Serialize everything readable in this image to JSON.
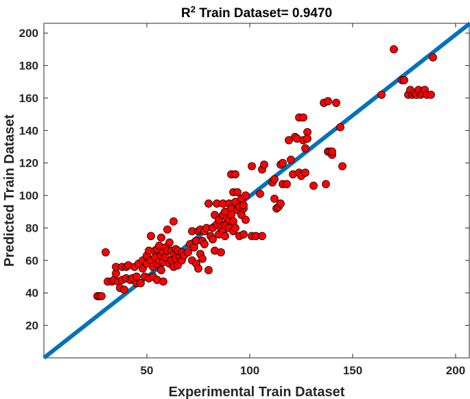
{
  "chart_data": {
    "type": "scatter",
    "title": {
      "prefix": "R",
      "superscript": "2",
      "rest": " Train Dataset= 0.9470"
    },
    "xlabel": "Experimental Train Dataset",
    "ylabel": "Predicted Train Dataset",
    "xlim": [
      0,
      207
    ],
    "ylim": [
      0,
      206
    ],
    "xticks": [
      50,
      100,
      150,
      200
    ],
    "yticks": [
      20,
      40,
      60,
      80,
      100,
      120,
      140,
      160,
      180,
      200
    ],
    "grid": false,
    "reference_line": {
      "from": [
        0,
        0
      ],
      "to": [
        207,
        206
      ],
      "color": "#0072BD"
    },
    "marker_color": "#ff0000",
    "marker_edge": "#000000",
    "points": [
      [
        26,
        38
      ],
      [
        27,
        38
      ],
      [
        28,
        38
      ],
      [
        30,
        65
      ],
      [
        31,
        47
      ],
      [
        33,
        47
      ],
      [
        34,
        48
      ],
      [
        35,
        52
      ],
      [
        35,
        56
      ],
      [
        36,
        47
      ],
      [
        37,
        43
      ],
      [
        38,
        48
      ],
      [
        38,
        56
      ],
      [
        39,
        42
      ],
      [
        40,
        49
      ],
      [
        40,
        56
      ],
      [
        41,
        57
      ],
      [
        42,
        48
      ],
      [
        43,
        49
      ],
      [
        44,
        56
      ],
      [
        45,
        46
      ],
      [
        45,
        50
      ],
      [
        46,
        58
      ],
      [
        47,
        46
      ],
      [
        48,
        55
      ],
      [
        48,
        60
      ],
      [
        49,
        50
      ],
      [
        50,
        58
      ],
      [
        50,
        63
      ],
      [
        51,
        49
      ],
      [
        51,
        66
      ],
      [
        52,
        60
      ],
      [
        52,
        75
      ],
      [
        53,
        50
      ],
      [
        53,
        56
      ],
      [
        54,
        62
      ],
      [
        54,
        66
      ],
      [
        55,
        48
      ],
      [
        55,
        58
      ],
      [
        55,
        67
      ],
      [
        56,
        60
      ],
      [
        56,
        69
      ],
      [
        57,
        54
      ],
      [
        57,
        63
      ],
      [
        57,
        74
      ],
      [
        58,
        59
      ],
      [
        58,
        65
      ],
      [
        58,
        47
      ],
      [
        59,
        62
      ],
      [
        59,
        68
      ],
      [
        60,
        79
      ],
      [
        60,
        66
      ],
      [
        61,
        58
      ],
      [
        61,
        71
      ],
      [
        62,
        60
      ],
      [
        62,
        66
      ],
      [
        63,
        56
      ],
      [
        63,
        64
      ],
      [
        63,
        84
      ],
      [
        64,
        61
      ],
      [
        64,
        67
      ],
      [
        65,
        57
      ],
      [
        65,
        66
      ],
      [
        66,
        62
      ],
      [
        67,
        65
      ],
      [
        67,
        60
      ],
      [
        68,
        63
      ],
      [
        70,
        65
      ],
      [
        71,
        70
      ],
      [
        72,
        60
      ],
      [
        72,
        78
      ],
      [
        73,
        68
      ],
      [
        74,
        58
      ],
      [
        74,
        72
      ],
      [
        75,
        55
      ],
      [
        75,
        78
      ],
      [
        76,
        64
      ],
      [
        76,
        79
      ],
      [
        77,
        61
      ],
      [
        77,
        72
      ],
      [
        78,
        70
      ],
      [
        78,
        78
      ],
      [
        79,
        80
      ],
      [
        80,
        54
      ],
      [
        80,
        95
      ],
      [
        81,
        75
      ],
      [
        82,
        73
      ],
      [
        82,
        80
      ],
      [
        83,
        66
      ],
      [
        83,
        88
      ],
      [
        84,
        82
      ],
      [
        84,
        95
      ],
      [
        85,
        76
      ],
      [
        85,
        85
      ],
      [
        86,
        65
      ],
      [
        86,
        80
      ],
      [
        87,
        78
      ],
      [
        87,
        88
      ],
      [
        87,
        95
      ],
      [
        88,
        82
      ],
      [
        88,
        90
      ],
      [
        88,
        75
      ],
      [
        89,
        83
      ],
      [
        89,
        86
      ],
      [
        90,
        80
      ],
      [
        90,
        85
      ],
      [
        90,
        95
      ],
      [
        91,
        92
      ],
      [
        91,
        88
      ],
      [
        91,
        113
      ],
      [
        92,
        78
      ],
      [
        92,
        84
      ],
      [
        92,
        102
      ],
      [
        93,
        80
      ],
      [
        93,
        96
      ],
      [
        93,
        113
      ],
      [
        94,
        91
      ],
      [
        94,
        102
      ],
      [
        95,
        75
      ],
      [
        95,
        93
      ],
      [
        96,
        88
      ],
      [
        96,
        98
      ],
      [
        97,
        76
      ],
      [
        97,
        92
      ],
      [
        97,
        94
      ],
      [
        98,
        100
      ],
      [
        98,
        85
      ],
      [
        101,
        75
      ],
      [
        101,
        118
      ],
      [
        103,
        75
      ],
      [
        105,
        101
      ],
      [
        106,
        116
      ],
      [
        106,
        75
      ],
      [
        107,
        119
      ],
      [
        111,
        108
      ],
      [
        112,
        110
      ],
      [
        112,
        98
      ],
      [
        113,
        92
      ],
      [
        114,
        93
      ],
      [
        115,
        95
      ],
      [
        115,
        119
      ],
      [
        116,
        120
      ],
      [
        116,
        107
      ],
      [
        118,
        107
      ],
      [
        119,
        134
      ],
      [
        120,
        122
      ],
      [
        121,
        113
      ],
      [
        122,
        136
      ],
      [
        123,
        135
      ],
      [
        124,
        114
      ],
      [
        124,
        148
      ],
      [
        125,
        112
      ],
      [
        126,
        148
      ],
      [
        126,
        134
      ],
      [
        127,
        114
      ],
      [
        127,
        129
      ],
      [
        128,
        139
      ],
      [
        128,
        135
      ],
      [
        131,
        106
      ],
      [
        136,
        157
      ],
      [
        137,
        107
      ],
      [
        138,
        158
      ],
      [
        138,
        127
      ],
      [
        139,
        127
      ],
      [
        140,
        125
      ],
      [
        140,
        127
      ],
      [
        142,
        157
      ],
      [
        144,
        142
      ],
      [
        145,
        118
      ],
      [
        164,
        162
      ],
      [
        170,
        190
      ],
      [
        174,
        171
      ],
      [
        175,
        171
      ],
      [
        177,
        162
      ],
      [
        178,
        165
      ],
      [
        179,
        162
      ],
      [
        180,
        163
      ],
      [
        181,
        162
      ],
      [
        182,
        165
      ],
      [
        183,
        162
      ],
      [
        184,
        163
      ],
      [
        185,
        165
      ],
      [
        186,
        162
      ],
      [
        188,
        162
      ],
      [
        189,
        185
      ]
    ]
  }
}
